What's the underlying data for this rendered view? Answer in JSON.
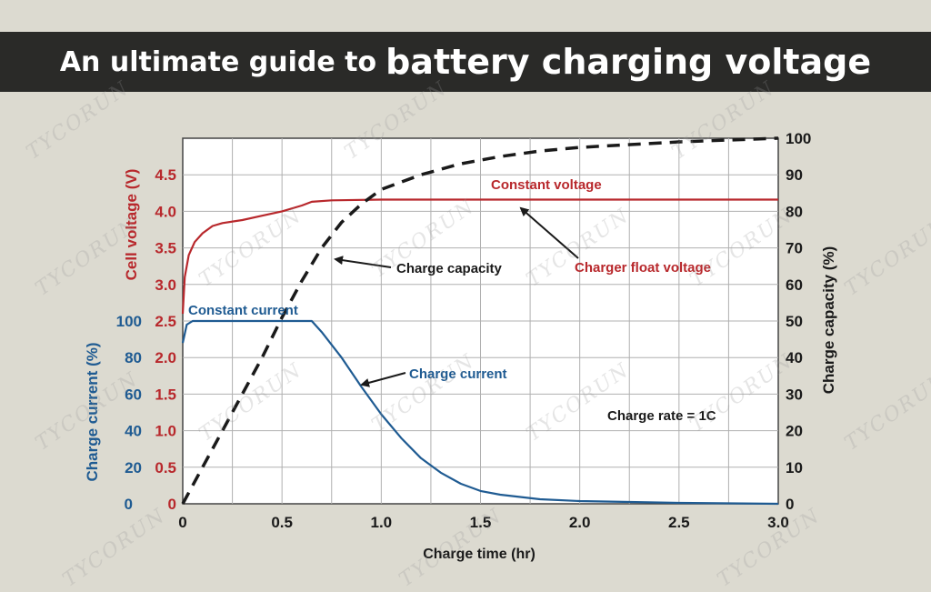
{
  "banner": {
    "title_small": "An ultimate guide to",
    "title_big": "battery charging voltage"
  },
  "watermark": "TYCORUN",
  "colors": {
    "voltage": "#b8282c",
    "current": "#1f5b92",
    "capacity": "#1a1a1a",
    "grid": "#b0b0b0"
  },
  "chart_data": {
    "type": "line",
    "xlabel": "Charge time (hr)",
    "xlim": [
      0,
      3.0
    ],
    "x_ticks": [
      "0",
      "0.5",
      "1.0",
      "1.5",
      "2.0",
      "2.5",
      "3.0"
    ],
    "y_left_voltage": {
      "label": "Cell voltage (V)",
      "ticks": [
        "4.5",
        "4.0",
        "3.5",
        "3.0",
        "2.5",
        "2.0",
        "1.5",
        "1.0",
        "0.5",
        "0"
      ],
      "ylim": [
        0,
        5.0
      ]
    },
    "y_left_current": {
      "label": "Charge current (%)",
      "ticks": [
        "100",
        "80",
        "60",
        "40",
        "20",
        "0"
      ],
      "ylim": [
        0,
        200
      ]
    },
    "y_right": {
      "label": "Charge capacity (%)",
      "ticks": [
        "100",
        "90",
        "80",
        "70",
        "60",
        "50",
        "40",
        "30",
        "20",
        "10",
        "0"
      ],
      "ylim": [
        0,
        100
      ]
    },
    "series": [
      {
        "key": "voltage",
        "axis": "voltage",
        "x": [
          0,
          0.01,
          0.03,
          0.06,
          0.1,
          0.15,
          0.2,
          0.3,
          0.4,
          0.5,
          0.6,
          0.65,
          0.75,
          1.0,
          1.5,
          2.0,
          2.5,
          3.0
        ],
        "y": [
          2.6,
          3.1,
          3.4,
          3.58,
          3.7,
          3.8,
          3.84,
          3.88,
          3.94,
          4.0,
          4.08,
          4.13,
          4.15,
          4.16,
          4.16,
          4.16,
          4.16,
          4.16
        ]
      },
      {
        "key": "current",
        "axis": "current",
        "x": [
          0,
          0.02,
          0.05,
          0.65,
          0.7,
          0.8,
          0.9,
          1.0,
          1.1,
          1.2,
          1.3,
          1.4,
          1.5,
          1.6,
          1.8,
          2.0,
          2.5,
          3.0
        ],
        "y": [
          88,
          98,
          100,
          100,
          94,
          80,
          64,
          49,
          36,
          25,
          17,
          11,
          7,
          5,
          2.5,
          1.5,
          0.5,
          0
        ]
      },
      {
        "key": "capacity",
        "axis": "capacity",
        "x": [
          0,
          0.1,
          0.2,
          0.3,
          0.4,
          0.5,
          0.6,
          0.7,
          0.8,
          0.9,
          1.0,
          1.2,
          1.4,
          1.6,
          1.8,
          2.0,
          2.5,
          3.0
        ],
        "y": [
          0,
          10,
          20,
          30,
          40,
          51,
          61,
          70,
          77,
          82,
          86,
          90,
          93,
          95,
          96.5,
          97.5,
          99,
          100
        ]
      }
    ],
    "annotations": {
      "constant_voltage": "Constant voltage",
      "charger_float": "Charger float voltage",
      "charge_capacity": "Charge capacity",
      "constant_current": "Constant current",
      "charge_current": "Charge current",
      "charge_rate": "Charge rate = 1C"
    }
  }
}
